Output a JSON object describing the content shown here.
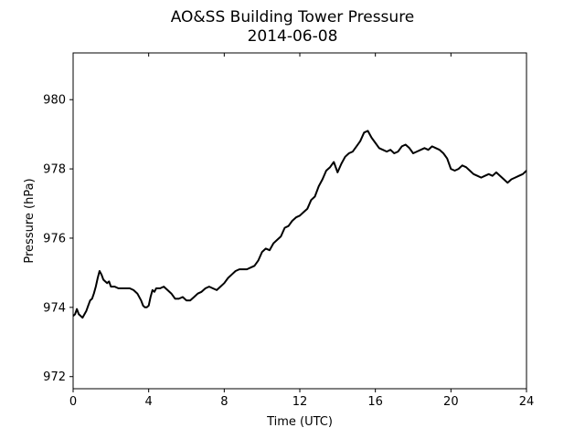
{
  "chart_data": {
    "type": "line",
    "title": "AO&SS Building Tower Pressure",
    "subtitle": "2014-06-08",
    "xlabel": "Time (UTC)",
    "ylabel": "Pressure (hPa)",
    "xlim": [
      0,
      24
    ],
    "ylim": [
      971.65,
      981.35
    ],
    "xticks": [
      0,
      4,
      8,
      12,
      16,
      20,
      24
    ],
    "yticks": [
      972,
      974,
      976,
      978,
      980
    ],
    "grid": false,
    "line_color": "#000000",
    "series": [
      {
        "x": [
          0.0,
          0.1,
          0.2,
          0.3,
          0.4,
          0.5,
          0.6,
          0.7,
          0.8,
          0.9,
          1.0,
          1.1,
          1.2,
          1.3,
          1.4,
          1.5,
          1.6,
          1.7,
          1.8,
          1.9,
          2.0,
          2.2,
          2.4,
          2.6,
          2.8,
          3.0,
          3.2,
          3.4,
          3.6,
          3.7,
          3.8,
          3.9,
          4.0,
          4.1,
          4.2,
          4.3,
          4.4,
          4.6,
          4.8,
          5.0,
          5.2,
          5.4,
          5.6,
          5.8,
          6.0,
          6.2,
          6.4,
          6.6,
          6.8,
          7.0,
          7.2,
          7.4,
          7.6,
          7.8,
          8.0,
          8.2,
          8.4,
          8.6,
          8.8,
          9.0,
          9.2,
          9.4,
          9.6,
          9.8,
          10.0,
          10.2,
          10.4,
          10.6,
          10.8,
          11.0,
          11.2,
          11.4,
          11.6,
          11.8,
          12.0,
          12.2,
          12.4,
          12.6,
          12.8,
          13.0,
          13.2,
          13.4,
          13.6,
          13.8,
          14.0,
          14.2,
          14.4,
          14.6,
          14.8,
          15.0,
          15.2,
          15.4,
          15.6,
          15.8,
          16.0,
          16.2,
          16.4,
          16.6,
          16.8,
          17.0,
          17.2,
          17.4,
          17.6,
          17.8,
          18.0,
          18.2,
          18.4,
          18.6,
          18.8,
          19.0,
          19.2,
          19.4,
          19.6,
          19.8,
          20.0,
          20.2,
          20.4,
          20.6,
          20.8,
          21.0,
          21.2,
          21.4,
          21.6,
          21.8,
          22.0,
          22.2,
          22.4,
          22.6,
          22.8,
          23.0,
          23.2,
          23.4,
          23.6,
          23.8,
          24.0
        ],
        "values": [
          973.75,
          973.8,
          973.95,
          973.8,
          973.75,
          973.7,
          973.8,
          973.9,
          974.05,
          974.2,
          974.25,
          974.4,
          974.6,
          974.85,
          975.05,
          974.95,
          974.8,
          974.75,
          974.7,
          974.75,
          974.6,
          974.6,
          974.55,
          974.55,
          974.55,
          974.55,
          974.5,
          974.4,
          974.2,
          974.05,
          974.0,
          974.0,
          974.05,
          974.3,
          974.5,
          974.45,
          974.55,
          974.55,
          974.6,
          974.5,
          974.4,
          974.25,
          974.25,
          974.3,
          974.2,
          974.2,
          974.3,
          974.4,
          974.45,
          974.55,
          974.6,
          974.55,
          974.5,
          974.6,
          974.7,
          974.85,
          974.95,
          975.05,
          975.1,
          975.1,
          975.1,
          975.15,
          975.2,
          975.35,
          975.6,
          975.7,
          975.65,
          975.85,
          975.95,
          976.05,
          976.3,
          976.35,
          976.5,
          976.6,
          976.65,
          976.75,
          976.85,
          977.1,
          977.2,
          977.5,
          977.7,
          977.95,
          978.05,
          978.2,
          977.9,
          978.15,
          978.35,
          978.45,
          978.5,
          978.65,
          978.8,
          979.05,
          979.1,
          978.9,
          978.75,
          978.6,
          978.55,
          978.5,
          978.55,
          978.45,
          978.5,
          978.65,
          978.7,
          978.6,
          978.45,
          978.5,
          978.55,
          978.6,
          978.55,
          978.65,
          978.6,
          978.55,
          978.45,
          978.3,
          978.0,
          977.95,
          978.0,
          978.1,
          978.05,
          977.95,
          977.85,
          977.8,
          977.75,
          977.8,
          977.85,
          977.8,
          977.9,
          977.8,
          977.7,
          977.6,
          977.7,
          977.75,
          977.8,
          977.85,
          977.95
        ]
      }
    ]
  }
}
